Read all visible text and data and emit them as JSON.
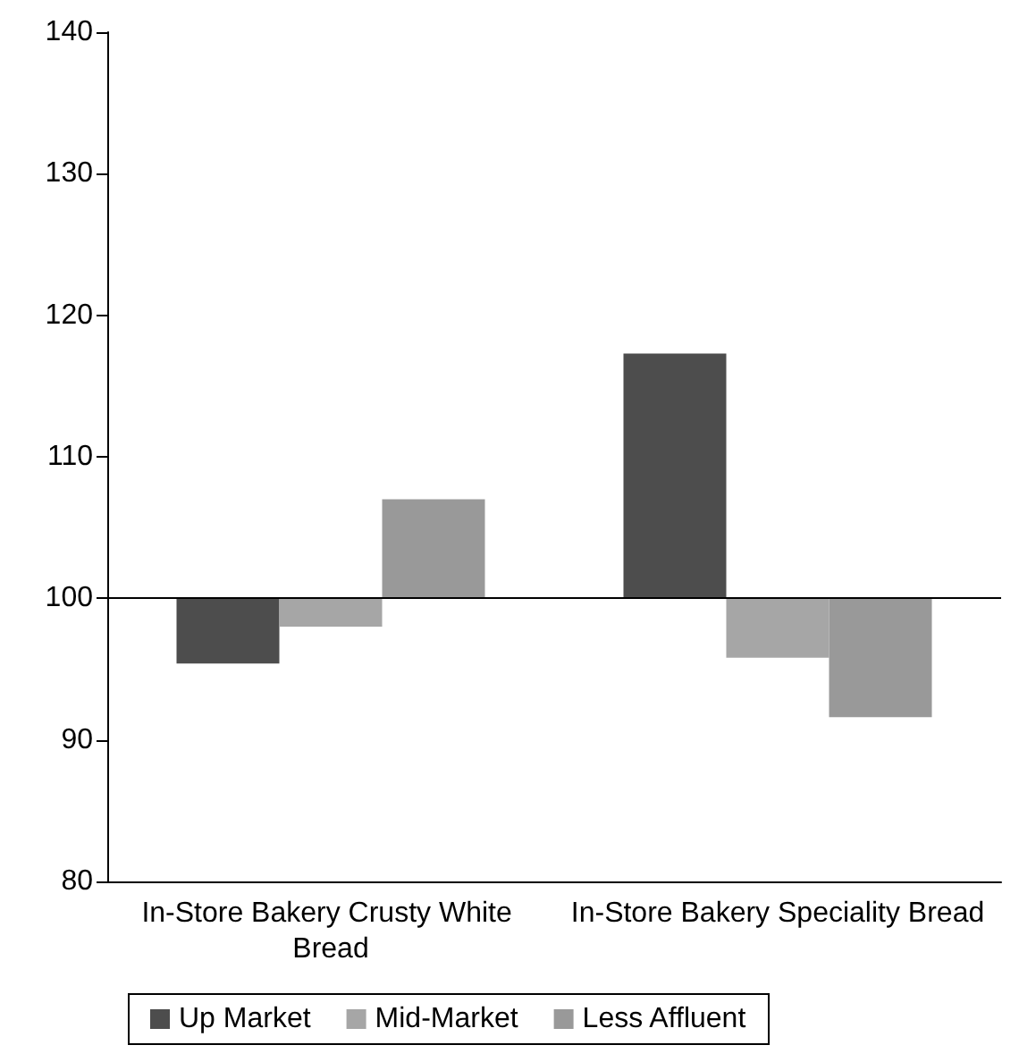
{
  "chart_data": {
    "type": "bar",
    "categories": [
      "In-Store Bakery Crusty White Bread",
      "In-Store Bakery Speciality Bread"
    ],
    "series": [
      {
        "name": "Up Market",
        "color": "#4d4d4d",
        "base": [
          100,
          100
        ],
        "values": [
          -4.6,
          17.3
        ]
      },
      {
        "name": "Mid-Market",
        "color": "#a6a6a6",
        "base": [
          100,
          100
        ],
        "values": [
          -2.0,
          -4.2
        ]
      },
      {
        "name": "Less Affluent",
        "color": "#999999",
        "base": [
          100,
          100
        ],
        "values": [
          7.0,
          -8.4
        ]
      }
    ],
    "ylim": [
      80,
      140
    ],
    "yticks": [
      80,
      90,
      100,
      110,
      120,
      130,
      140
    ],
    "ref_lines": [
      {
        "axis": "y",
        "value": 100,
        "color": "#000000"
      }
    ],
    "grid": false,
    "legend": "bottom"
  }
}
